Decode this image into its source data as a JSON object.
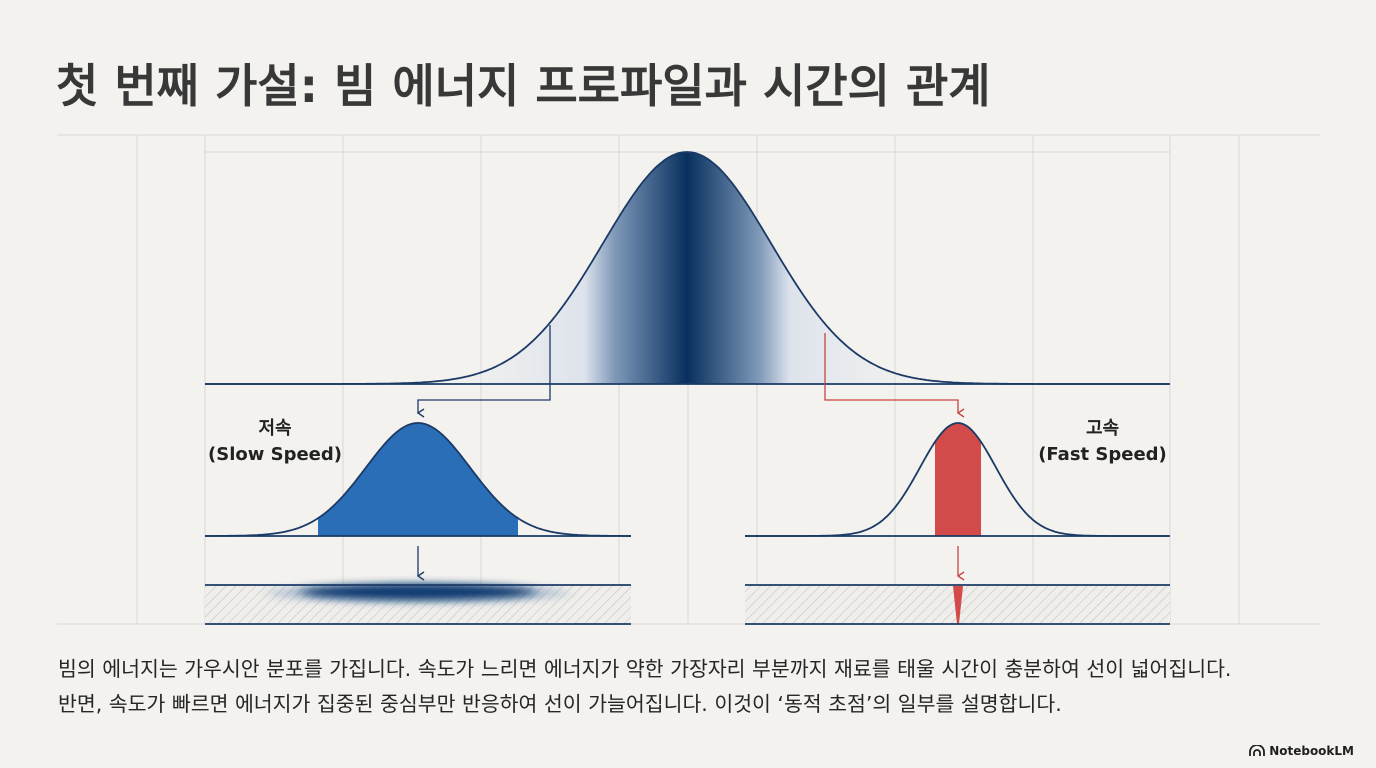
{
  "title": "첫 번째 가설: 빔 에너지 프로파일과 시간의 관계",
  "labels": {
    "slow": {
      "ko": "저속",
      "en": "(Slow Speed)"
    },
    "fast": {
      "ko": "고속",
      "en": "(Fast Speed)"
    }
  },
  "caption": [
    "빔의 에너지는 가우시안 분포를 가집니다. 속도가 느리면 에너지가 약한 가장자리 부분까지 재료를 태울 시간이 충분하여 선이 넓어집니다.",
    "반면, 속도가 빠르면 에너지가 집중된 중심부만 반응하여 선이 가늘어집니다. 이것이 ‘동적 초점’의 일부를 설명합니다."
  ],
  "logo": {
    "text": "NotebookLM",
    "icon": "notebooklm-icon"
  },
  "colors": {
    "navy": "#1b3a66",
    "deep_blue": "#0a3466",
    "slow_blue": "#2a6eb7",
    "fast_red": "#d24a4a",
    "grid": "#d6d6d6",
    "background": "#f3f2ee"
  }
}
